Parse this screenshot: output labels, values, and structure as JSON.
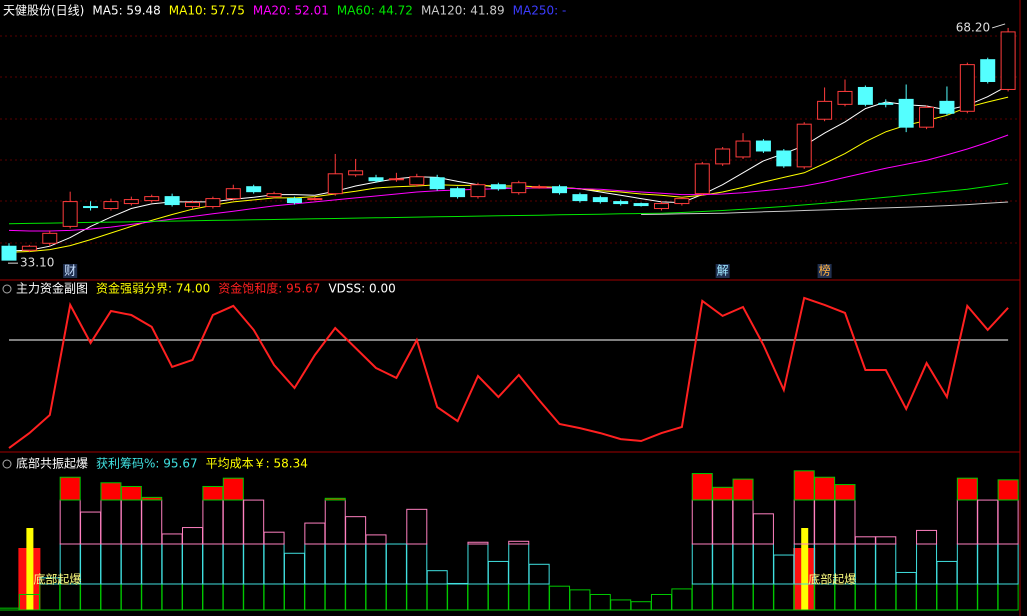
{
  "chart_data": [
    {
      "type": "candlestick",
      "title": "天健股份(日线)",
      "open": [
        35.2,
        34.6,
        35.65,
        38.2,
        41.2,
        40.9,
        41.65,
        42.1,
        42.7,
        41.2,
        41.2,
        42.4,
        44.2,
        42.7,
        42.4,
        42.25,
        43.15,
        46.0,
        45.55,
        45.25,
        44.5,
        45.55,
        43.9,
        42.7,
        44.5,
        43.3,
        44.13,
        44.2,
        43.0,
        42.55,
        41.95,
        41.65,
        40.9,
        41.65,
        43.15,
        47.65,
        48.7,
        51.1,
        49.6,
        47.2,
        54.4,
        56.65,
        59.2,
        56.8,
        57.4,
        53.2,
        57.1,
        55.6,
        63.4,
        58.9
      ],
      "high": [
        35.65,
        35.4,
        37.6,
        43.45,
        42.0,
        42.4,
        42.7,
        43.0,
        43.15,
        42.1,
        42.7,
        44.5,
        44.5,
        43.45,
        42.7,
        42.7,
        49.15,
        48.4,
        46.0,
        46.3,
        46.15,
        46.0,
        44.2,
        44.8,
        44.8,
        45.1,
        44.5,
        44.5,
        43.3,
        42.85,
        42.25,
        41.8,
        41.95,
        42.7,
        47.95,
        50.2,
        52.3,
        51.4,
        49.9,
        53.95,
        59.2,
        60.4,
        59.5,
        57.4,
        59.65,
        56.5,
        59.35,
        62.95,
        63.7,
        68.2
      ],
      "low": [
        33.1,
        34.3,
        35.2,
        37.9,
        40.6,
        40.6,
        41.35,
        41.8,
        41.2,
        40.9,
        40.9,
        42.1,
        43.15,
        42.4,
        41.5,
        42.1,
        42.85,
        45.7,
        44.8,
        44.95,
        44.2,
        43.6,
        42.4,
        42.4,
        43.6,
        43.0,
        43.9,
        43.0,
        41.8,
        41.65,
        41.35,
        41.2,
        40.6,
        41.35,
        42.85,
        47.35,
        48.4,
        49.3,
        47.05,
        46.9,
        54.1,
        56.35,
        56.35,
        56.2,
        52.45,
        52.9,
        55.0,
        55.3,
        59.8,
        58.6
      ],
      "close": [
        33.1,
        35.2,
        37.15,
        41.95,
        41.05,
        41.95,
        42.25,
        42.7,
        41.5,
        41.8,
        42.4,
        43.9,
        43.45,
        43.15,
        41.8,
        42.4,
        46.15,
        46.6,
        45.1,
        45.4,
        45.7,
        43.9,
        42.7,
        44.5,
        43.9,
        44.8,
        44.2,
        43.3,
        42.1,
        41.95,
        41.65,
        41.35,
        41.65,
        42.4,
        47.65,
        49.9,
        51.1,
        49.6,
        47.35,
        53.65,
        57.1,
        58.6,
        56.65,
        56.65,
        53.2,
        56.2,
        55.3,
        62.65,
        60.1,
        67.6
      ],
      "up_color": "#ff3c3c",
      "down_color": "#54ffff",
      "ylim": [
        30.4,
        69.7
      ],
      "series": [
        {
          "name": "MA5: 59.48",
          "color": "#ffffff",
          "values": [
            34.5,
            34.6,
            35.2,
            36.5,
            38.2,
            39.6,
            40.9,
            41.6,
            41.9,
            41.9,
            41.9,
            42.3,
            42.6,
            43.0,
            43.0,
            42.9,
            43.5,
            44.3,
            44.9,
            45.4,
            45.7,
            45.6,
            45.0,
            44.5,
            44.1,
            43.9,
            44.1,
            44.1,
            43.9,
            43.4,
            42.9,
            42.4,
            41.9,
            41.8,
            43.0,
            44.5,
            46.3,
            48.1,
            49.2,
            50.4,
            52.3,
            54.0,
            56.0,
            57.0,
            56.6,
            56.4,
            55.8,
            56.5,
            57.8,
            59.48
          ]
        },
        {
          "name": "MA10: 57.75",
          "color": "#ffff00",
          "values": [
            34.3,
            34.4,
            34.7,
            35.3,
            36.2,
            37.2,
            38.2,
            39.1,
            40.0,
            40.8,
            41.4,
            41.9,
            42.2,
            42.5,
            42.5,
            42.7,
            43.1,
            43.5,
            44.0,
            44.2,
            44.3,
            44.5,
            44.4,
            44.4,
            44.3,
            44.3,
            44.2,
            44.1,
            43.9,
            43.6,
            43.4,
            43.1,
            42.9,
            42.6,
            42.9,
            43.4,
            44.1,
            44.9,
            45.6,
            46.3,
            47.7,
            49.2,
            51.0,
            52.5,
            53.5,
            54.2,
            55.0,
            56.2,
            57.0,
            57.75
          ]
        },
        {
          "name": "MA20: 52.01",
          "color": "#ff00ff",
          "values": [
            37.6,
            37.5,
            37.5,
            37.6,
            37.8,
            38.1,
            38.5,
            38.9,
            39.3,
            39.7,
            40.1,
            40.5,
            40.9,
            41.3,
            41.6,
            41.9,
            42.2,
            42.5,
            42.8,
            43.1,
            43.4,
            43.6,
            43.7,
            43.8,
            43.9,
            44.0,
            44.0,
            44.0,
            43.9,
            43.8,
            43.6,
            43.4,
            43.2,
            43.0,
            43.0,
            43.1,
            43.3,
            43.6,
            43.9,
            44.3,
            44.9,
            45.6,
            46.3,
            47.0,
            47.6,
            48.2,
            49.0,
            49.9,
            50.9,
            52.01
          ]
        },
        {
          "name": "MA60: 44.72",
          "color": "#00e600",
          "values": [
            38.6,
            38.65,
            38.7,
            38.75,
            38.8,
            38.85,
            38.9,
            38.95,
            39.0,
            39.05,
            39.1,
            39.15,
            39.2,
            39.25,
            39.3,
            39.35,
            39.4,
            39.45,
            39.5,
            39.55,
            39.6,
            39.65,
            39.7,
            39.75,
            39.8,
            39.85,
            39.9,
            39.95,
            40.0,
            40.05,
            40.1,
            40.15,
            40.2,
            40.3,
            40.45,
            40.6,
            40.8,
            41.0,
            41.2,
            41.45,
            41.7,
            42.0,
            42.3,
            42.6,
            42.9,
            43.2,
            43.5,
            43.8,
            44.25,
            44.72
          ]
        },
        {
          "name": "MA120: 41.89",
          "color": "#c8c8c8",
          "values": [
            null,
            null,
            null,
            null,
            null,
            null,
            null,
            null,
            null,
            null,
            null,
            null,
            null,
            null,
            null,
            null,
            null,
            null,
            null,
            null,
            null,
            null,
            null,
            null,
            null,
            null,
            null,
            null,
            null,
            null,
            null,
            40.0,
            40.05,
            40.1,
            40.15,
            40.2,
            40.3,
            40.4,
            40.5,
            40.6,
            40.7,
            40.8,
            40.9,
            41.0,
            41.1,
            41.2,
            41.35,
            41.5,
            41.7,
            41.89
          ]
        }
      ],
      "extra_legend": [
        {
          "name": "MA250: -",
          "color": "#3c3cff"
        }
      ],
      "annotations": [
        {
          "text": "68.20",
          "at": 49
        },
        {
          "text": "33.10",
          "at": 0
        }
      ],
      "markers": [
        {
          "text": "财",
          "at": 3,
          "color": "#c8e0ff"
        },
        {
          "text": "解",
          "at": 35,
          "color": "#a0e8ff"
        },
        {
          "text": "榜",
          "at": 40,
          "color": "#ffb040"
        }
      ]
    },
    {
      "type": "line",
      "title": "主力资金副图",
      "threshold": 74,
      "threshold_label": "资金强弱分界: 74.00",
      "threshold_color": "#ffff00",
      "ylim": [
        -1.3,
        113
      ],
      "series": [
        {
          "name": "资金饱和度: 95.67",
          "color": "#ff2020",
          "values": [
            1.35,
            11.4,
            23.6,
            97.6,
            72.0,
            93.5,
            90.8,
            82.8,
            55.9,
            60.6,
            90.8,
            96.9,
            80.8,
            57.2,
            41.7,
            63.9,
            82.1,
            68.6,
            55.2,
            48.5,
            74.0,
            28.9,
            19.5,
            49.8,
            35.7,
            50.5,
            33.6,
            17.5,
            14.8,
            11.4,
            7.4,
            6.1,
            11.4,
            15.5,
            100.3,
            90.2,
            96.2,
            70.7,
            40.4,
            102.3,
            97.6,
            92.2,
            53.8,
            53.8,
            27.6,
            58.5,
            35.7,
            96.9,
            80.8,
            95.67
          ]
        }
      ],
      "extra_legend": [
        {
          "name": "VDSS: 0.00",
          "color": "#ffffff"
        }
      ]
    },
    {
      "type": "bar",
      "title": "底部共振起爆",
      "values": [
        1.35,
        11.4,
        23.6,
        97.6,
        72.0,
        93.5,
        90.8,
        82.8,
        55.9,
        60.6,
        90.8,
        96.9,
        80.8,
        57.2,
        41.7,
        63.9,
        82.1,
        68.6,
        55.2,
        48.5,
        74.0,
        28.9,
        19.5,
        49.8,
        35.7,
        50.5,
        33.6,
        17.5,
        14.8,
        11.4,
        7.4,
        6.1,
        11.4,
        15.5,
        100.3,
        90.2,
        96.2,
        70.7,
        40.4,
        102.3,
        97.6,
        92.2,
        53.8,
        53.8,
        27.6,
        58.5,
        35.7,
        96.9,
        80.8,
        95.67
      ],
      "ylim": [
        0,
        113.2
      ],
      "legend": [
        {
          "name": "获利筹码%: 95.67",
          "color": "#40e0e0"
        },
        {
          "name": "平均成本￥: 58.34",
          "color": "#ffff00"
        }
      ],
      "signals": [
        {
          "text": "底部起爆",
          "at": 1
        },
        {
          "text": "底部起爆",
          "at": 39
        }
      ]
    }
  ]
}
